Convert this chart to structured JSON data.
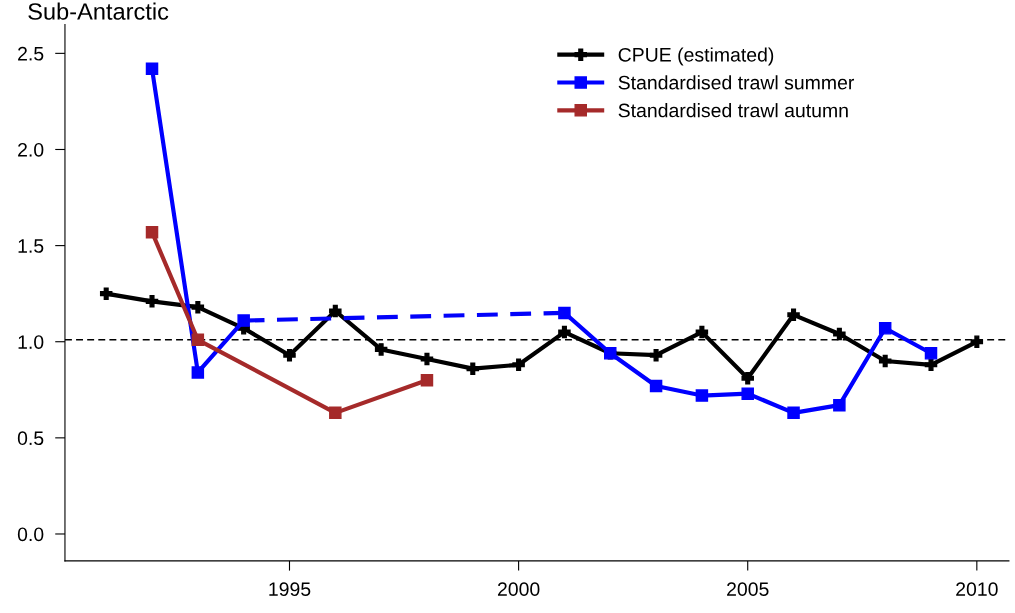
{
  "chart_data": {
    "type": "line",
    "title": "Sub-Antarctic",
    "x": [
      1991,
      1992,
      1993,
      1994,
      1995,
      1996,
      1997,
      1998,
      1999,
      2000,
      2001,
      2002,
      2003,
      2004,
      2005,
      2006,
      2007,
      2008,
      2009,
      2010
    ],
    "series": [
      {
        "name": "CPUE (estimated)",
        "color": "#000000",
        "marker": "cross",
        "values": [
          1.25,
          1.21,
          1.18,
          1.07,
          0.93,
          1.16,
          0.96,
          0.91,
          0.86,
          0.88,
          1.05,
          0.94,
          0.93,
          1.05,
          0.81,
          1.14,
          1.04,
          0.9,
          0.88,
          1.0
        ]
      },
      {
        "name": "Standardised trawl summer",
        "color": "#0000ff",
        "marker": "square",
        "values": [
          null,
          2.42,
          0.84,
          1.11,
          null,
          null,
          null,
          null,
          null,
          null,
          1.15,
          0.94,
          0.77,
          0.72,
          0.73,
          0.63,
          0.67,
          1.07,
          0.94,
          null
        ]
      },
      {
        "name": "Standardised trawl autumn",
        "color": "#a52a2a",
        "marker": "square",
        "x": [
          1992,
          1993,
          1996,
          1998
        ],
        "values": [
          1.57,
          1.01,
          0.63,
          0.8
        ]
      },
      {
        "color": "#0202fa",
        "marker": "none",
        "line_style": "dashed",
        "x": [
          1994,
          2001
        ],
        "values": [
          1.11,
          1.15
        ]
      }
    ],
    "xlim": [
      1990.1,
      2010.7
    ],
    "ylim": [
      -0.14,
      2.65
    ],
    "xticks": [
      1995,
      2000,
      2005,
      2010
    ],
    "yticks": [
      {
        "value": 0,
        "label": "0.0"
      },
      {
        "value": 0.5,
        "label": "0.5"
      },
      {
        "value": 1,
        "label": "1.0"
      },
      {
        "value": 1.5,
        "label": "1.5"
      },
      {
        "value": 2,
        "label": "2.0"
      },
      {
        "value": 2.5,
        "label": "2.5"
      }
    ],
    "ref_lines": [
      {
        "axis": "y",
        "value": 1.01,
        "color": "#000000",
        "line_style": "dashed"
      }
    ],
    "grid": false,
    "legend": "top right"
  }
}
